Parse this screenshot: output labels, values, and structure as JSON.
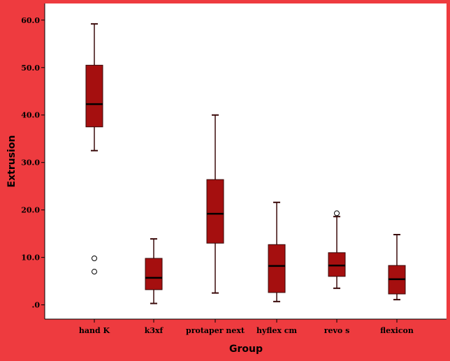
{
  "colors": {
    "background": "#ee3b3f",
    "plot_area": "#ffffff",
    "box_fill": "#a50f0f",
    "box_stroke": "#3a0a0a",
    "axis": "#000000"
  },
  "chart_data": {
    "type": "box",
    "title": "",
    "xlabel": "Group",
    "ylabel": "Extrusion",
    "ylim": [
      -3.0,
      63.5
    ],
    "yticks": [
      0,
      10,
      20,
      30,
      40,
      50,
      60
    ],
    "ytick_labels": [
      ".0",
      "10.0",
      "20.0",
      "30.0",
      "40.0",
      "50.0",
      "60.0"
    ],
    "grid": false,
    "categories": [
      "hand K",
      "k3xf",
      "protaper next",
      "hyflex cm",
      "revo s",
      "flexicon"
    ],
    "boxes": [
      {
        "category": "hand K",
        "whisker_low": 32.5,
        "q1": 37.5,
        "median": 42.3,
        "q3": 50.5,
        "whisker_high": 59.2,
        "outliers": [
          9.8,
          7.0
        ]
      },
      {
        "category": "k3xf",
        "whisker_low": 0.3,
        "q1": 3.2,
        "median": 5.7,
        "q3": 9.8,
        "whisker_high": 13.9,
        "outliers": []
      },
      {
        "category": "protaper next",
        "whisker_low": 2.5,
        "q1": 13.0,
        "median": 19.2,
        "q3": 26.4,
        "whisker_high": 40.0,
        "outliers": []
      },
      {
        "category": "hyflex cm",
        "whisker_low": 0.7,
        "q1": 2.6,
        "median": 8.2,
        "q3": 12.7,
        "whisker_high": 21.6,
        "outliers": []
      },
      {
        "category": "revo s",
        "whisker_low": 3.5,
        "q1": 6.0,
        "median": 8.3,
        "q3": 11.0,
        "whisker_high": 18.6,
        "outliers": [
          19.3
        ]
      },
      {
        "category": "flexicon",
        "whisker_low": 1.1,
        "q1": 2.3,
        "median": 5.4,
        "q3": 8.3,
        "whisker_high": 14.8,
        "outliers": []
      }
    ]
  }
}
